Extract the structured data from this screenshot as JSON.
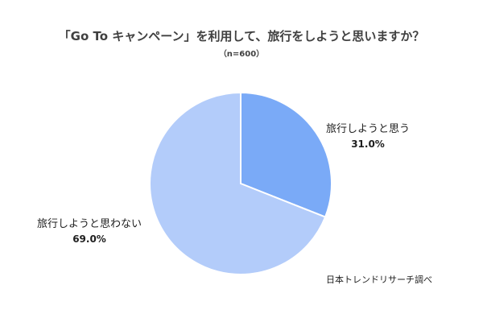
{
  "chart_data": {
    "type": "pie",
    "title": "「Go To キャンペーン」を利用して、旅行をしようと思いますか？",
    "subtitle": "（n=600）",
    "slices": [
      {
        "label": "旅行しようと思う",
        "value": 31.0,
        "value_label": "31.0%",
        "color": "#7aaaf7"
      },
      {
        "label": "旅行しようと思わない",
        "value": 69.0,
        "value_label": "69.0%",
        "color": "#b3ccfa"
      }
    ],
    "start": "12 o'clock",
    "direction": "clockwise",
    "legend": "none",
    "source": "日本トレンドリサーチ調べ"
  }
}
